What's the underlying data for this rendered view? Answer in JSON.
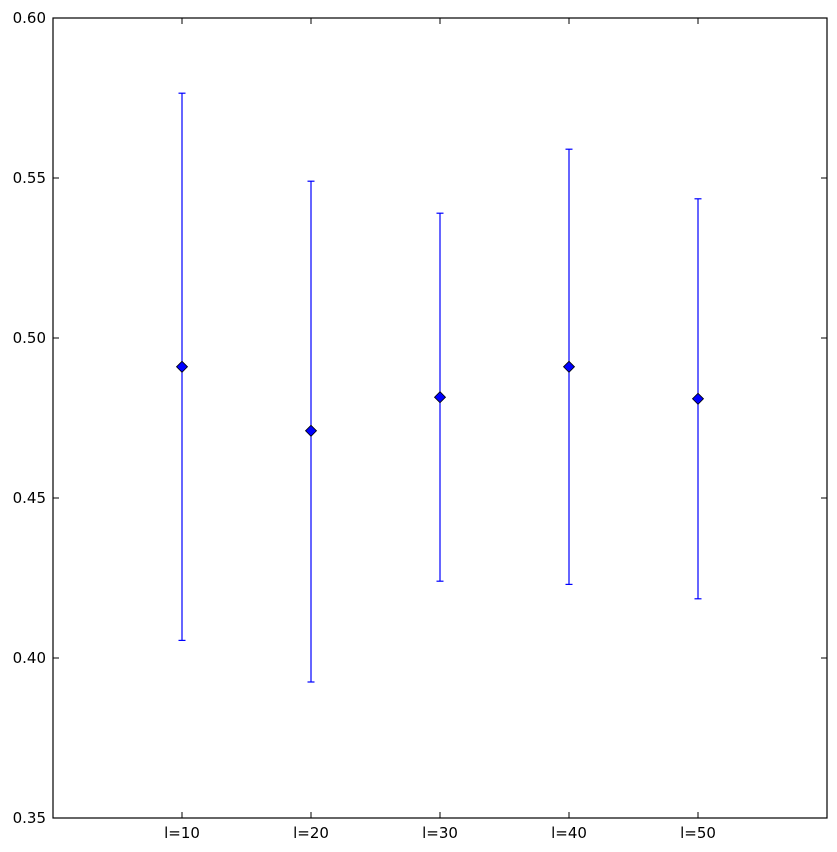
{
  "chart_data": {
    "type": "scatter",
    "error_bars": true,
    "categories": [
      "l=10",
      "l=20",
      "l=30",
      "l=40",
      "l=50"
    ],
    "series": [
      {
        "values": [
          0.491,
          0.471,
          0.4815,
          0.491,
          0.481
        ],
        "err_low": [
          0.4055,
          0.3925,
          0.424,
          0.423,
          0.4185
        ],
        "err_high": [
          0.5765,
          0.549,
          0.539,
          0.559,
          0.5435
        ],
        "color": "#0000ff",
        "marker": "diamond"
      }
    ],
    "ylim": [
      0.35,
      0.6
    ],
    "yticks": [
      "0.35",
      "0.40",
      "0.45",
      "0.50",
      "0.55",
      "0.60"
    ],
    "grid": false,
    "legend": "none",
    "title": "",
    "xlabel": "",
    "ylabel": ""
  }
}
